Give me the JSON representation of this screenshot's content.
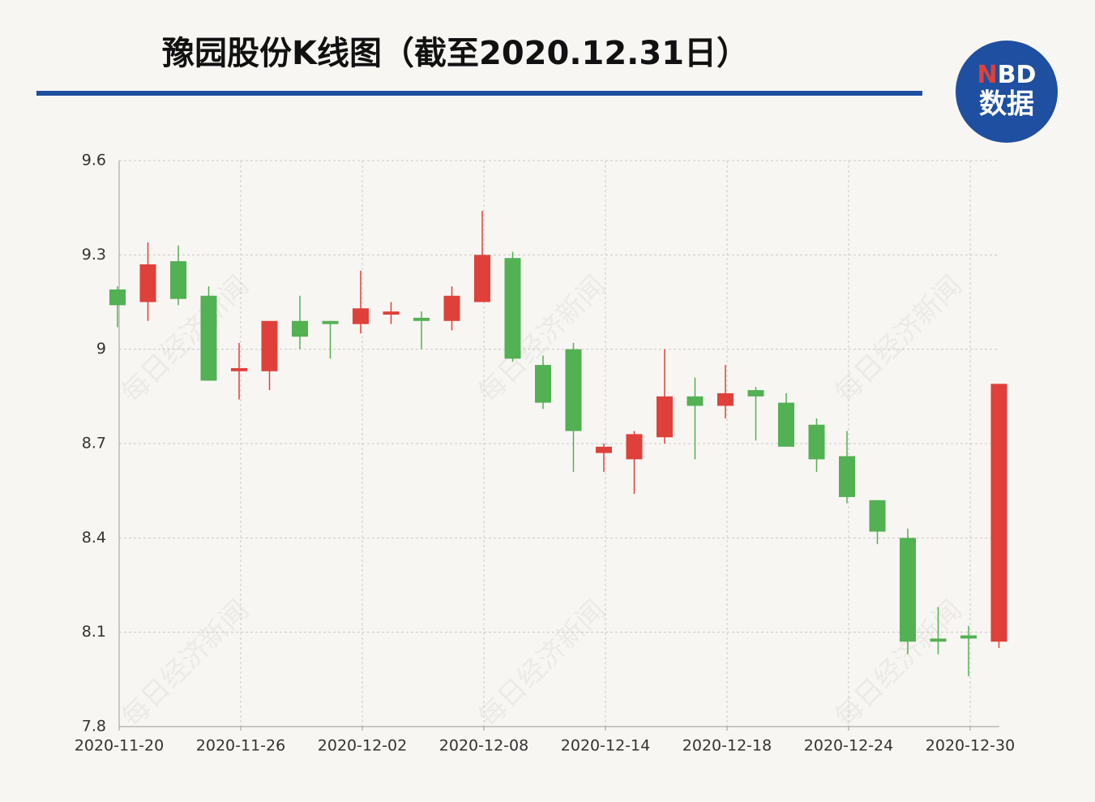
{
  "chart_data": {
    "type": "candlestick",
    "title": "豫园股份K线图（截至2020.12.31日）",
    "logo": [
      "N",
      "BD",
      "数据"
    ],
    "watermark": "每日经济新闻",
    "categories": [
      "2020-11-20",
      null,
      null,
      null,
      "2020-11-26",
      null,
      null,
      null,
      "2020-12-02",
      null,
      null,
      null,
      "2020-12-08",
      null,
      null,
      null,
      "2020-12-14",
      null,
      null,
      null,
      "2020-12-18",
      null,
      null,
      null,
      "2020-12-24",
      null,
      null,
      null,
      "2020-12-30",
      null
    ],
    "open": [
      9.19,
      9.15,
      9.28,
      9.17,
      8.93,
      8.93,
      9.09,
      9.09,
      9.08,
      9.11,
      9.1,
      9.09,
      9.15,
      9.29,
      8.95,
      9.0,
      8.67,
      8.65,
      8.72,
      8.85,
      8.82,
      8.87,
      8.83,
      8.76,
      8.66,
      8.52,
      8.4,
      8.08,
      8.09,
      8.07
    ],
    "high": [
      9.2,
      9.34,
      9.33,
      9.2,
      9.02,
      9.09,
      9.17,
      9.09,
      9.25,
      9.15,
      9.12,
      9.2,
      9.44,
      9.31,
      8.98,
      9.02,
      8.7,
      8.74,
      9.0,
      8.91,
      8.95,
      8.88,
      8.86,
      8.78,
      8.74,
      8.52,
      8.43,
      8.18,
      8.12,
      8.89
    ],
    "low": [
      9.07,
      9.09,
      9.14,
      8.9,
      8.84,
      8.87,
      9.0,
      8.97,
      9.05,
      9.08,
      9.0,
      9.06,
      9.15,
      8.96,
      8.81,
      8.61,
      8.61,
      8.54,
      8.7,
      8.65,
      8.78,
      8.71,
      8.69,
      8.61,
      8.51,
      8.38,
      8.03,
      8.03,
      7.96,
      8.05
    ],
    "close": [
      9.14,
      9.27,
      9.16,
      8.9,
      8.94,
      9.09,
      9.04,
      9.08,
      9.13,
      9.12,
      9.09,
      9.17,
      9.3,
      8.97,
      8.83,
      8.74,
      8.69,
      8.73,
      8.85,
      8.82,
      8.86,
      8.85,
      8.69,
      8.65,
      8.53,
      8.42,
      8.07,
      8.07,
      8.08,
      8.89
    ],
    "up_color": "#e0403a",
    "down_color": "#52b152",
    "ylim": [
      7.8,
      9.6
    ],
    "yticks": [
      7.8,
      8.1,
      8.4,
      8.7,
      9,
      9.3,
      9.6
    ],
    "grid": true
  }
}
